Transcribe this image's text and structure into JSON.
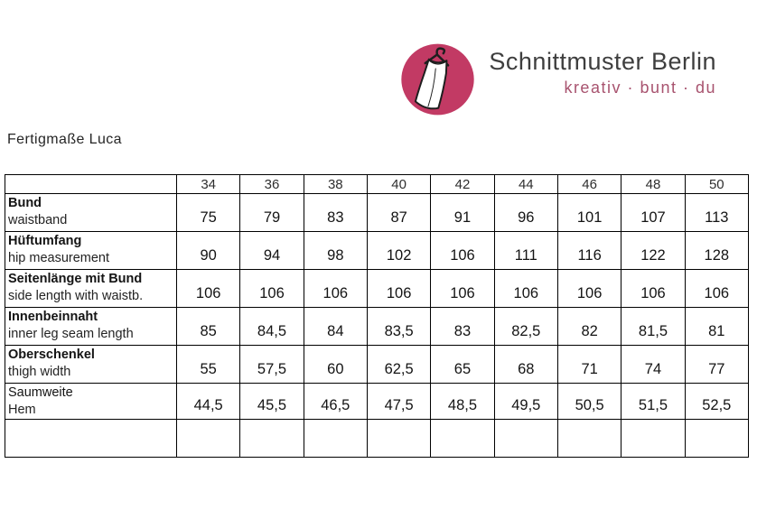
{
  "logo": {
    "brand": "Schnittmuster Berlin",
    "tagline": "kreativ · bunt · du",
    "badge_color": "#c23a64",
    "tagline_color": "#a8536f",
    "brand_text_color": "#3e3e3e",
    "icon": "dress-on-hanger-icon"
  },
  "page": {
    "title": "Fertigmaße Luca"
  },
  "table": {
    "sizes": [
      "34",
      "36",
      "38",
      "40",
      "42",
      "44",
      "46",
      "48",
      "50"
    ],
    "rows": [
      {
        "label_de": "Bund",
        "label_en": "waistband",
        "bold_de": true,
        "values": [
          "75",
          "79",
          "83",
          "87",
          "91",
          "96",
          "101",
          "107",
          "113"
        ]
      },
      {
        "label_de": "Hüftumfang",
        "label_en": "hip measurement",
        "bold_de": true,
        "values": [
          "90",
          "94",
          "98",
          "102",
          "106",
          "111",
          "116",
          "122",
          "128"
        ]
      },
      {
        "label_de": "Seitenlänge mit Bund",
        "label_en": "side length with waistb.",
        "bold_de": true,
        "values": [
          "106",
          "106",
          "106",
          "106",
          "106",
          "106",
          "106",
          "106",
          "106"
        ]
      },
      {
        "label_de": "Innenbeinnaht",
        "label_en": "inner leg seam length",
        "bold_de": true,
        "values": [
          "85",
          "84,5",
          "84",
          "83,5",
          "83",
          "82,5",
          "82",
          "81,5",
          "81"
        ]
      },
      {
        "label_de": "Oberschenkel",
        "label_en": "thigh width",
        "bold_de": true,
        "values": [
          "55",
          "57,5",
          "60",
          "62,5",
          "65",
          "68",
          "71",
          "74",
          "77"
        ]
      },
      {
        "label_de": "Saumweite",
        "label_en": "Hem",
        "bold_de": false,
        "values": [
          "44,5",
          "45,5",
          "46,5",
          "47,5",
          "48,5",
          "49,5",
          "50,5",
          "51,5",
          "52,5"
        ]
      }
    ],
    "empty_row": true
  }
}
